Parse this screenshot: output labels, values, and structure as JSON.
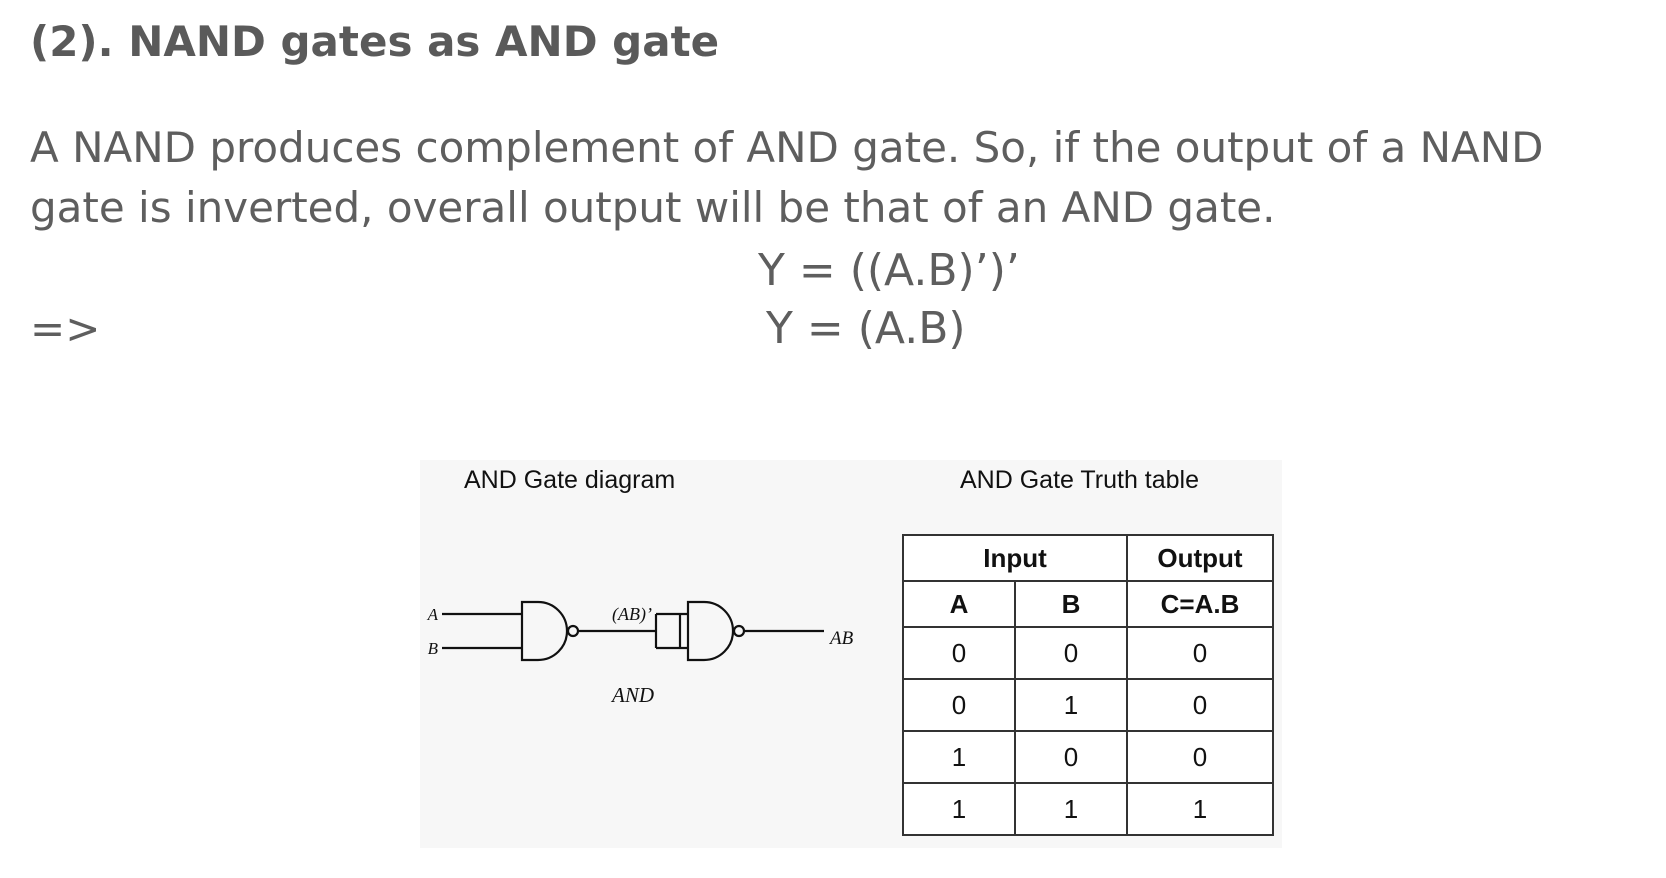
{
  "heading": "(2). NAND gates as AND gate",
  "paragraph": "A NAND produces complement of AND gate. So, if the output of a NAND gate is inverted, overall output will be that of an AND gate.",
  "equation1": "Y = ((A.B)’)’",
  "arrow": "=>",
  "equation2": "Y = (A.B)",
  "figure": {
    "diagram_title": "AND Gate diagram",
    "table_title": "AND Gate Truth table",
    "circuit": {
      "input_a": "A",
      "input_b": "B",
      "intermediate": "(AB)’",
      "output": "AB",
      "caption": "AND"
    },
    "truth_table": {
      "group_headers": [
        "Input",
        "Output"
      ],
      "columns": [
        "A",
        "B",
        "C=A.B"
      ],
      "rows": [
        [
          "0",
          "0",
          "0"
        ],
        [
          "0",
          "1",
          "0"
        ],
        [
          "1",
          "0",
          "0"
        ],
        [
          "1",
          "1",
          "1"
        ]
      ]
    }
  }
}
